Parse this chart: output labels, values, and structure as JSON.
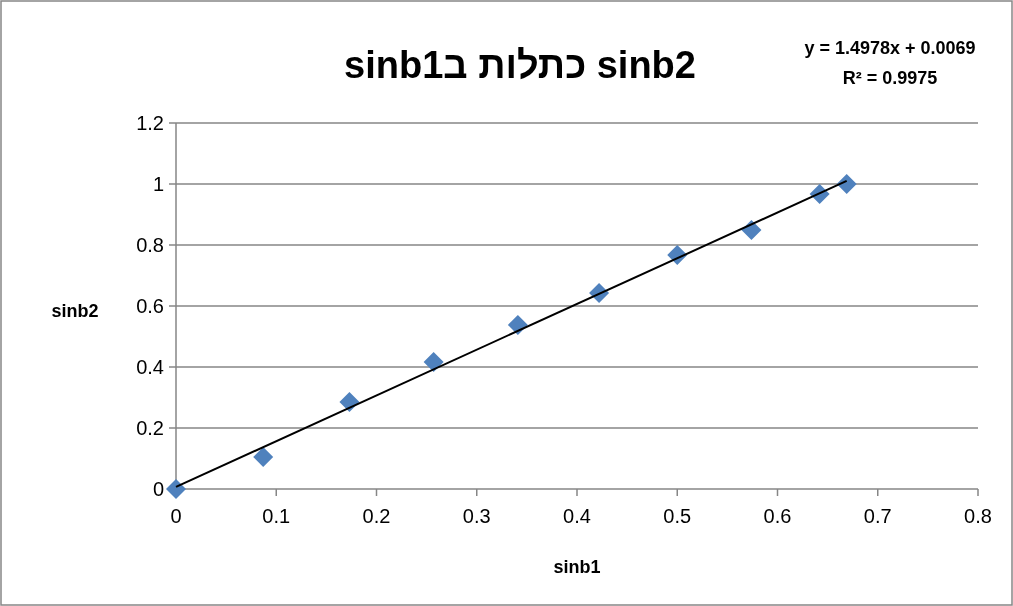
{
  "chart_data": {
    "type": "scatter",
    "title": "sinb2 כתלות בsinb1",
    "xlabel": "sinb1",
    "ylabel": "sinb2",
    "annotations": [
      "y = 1.4978x + 0.0069",
      "R² = 0.9975"
    ],
    "xlim": [
      0,
      0.8
    ],
    "xticks": [
      0,
      0.1,
      0.2,
      0.3,
      0.4,
      0.5,
      0.6,
      0.7,
      0.8
    ],
    "ylim": [
      0,
      1.2
    ],
    "yticks": [
      0,
      0.2,
      0.4,
      0.6,
      0.8,
      1,
      1.2
    ],
    "grid": "y",
    "series": [
      {
        "color": "#4f81bd",
        "marker": "diamond",
        "x": [
          0,
          0.087,
          0.173,
          0.257,
          0.341,
          0.422,
          0.5,
          0.574,
          0.642,
          0.669
        ],
        "values": [
          0,
          0.105,
          0.285,
          0.416,
          0.538,
          0.643,
          0.767,
          0.849,
          0.967,
          1.0
        ]
      },
      {
        "type": "line",
        "color": "#000000",
        "marker": "none",
        "x": [
          0,
          0.669
        ],
        "values": [
          0.007,
          1.01
        ]
      }
    ]
  }
}
